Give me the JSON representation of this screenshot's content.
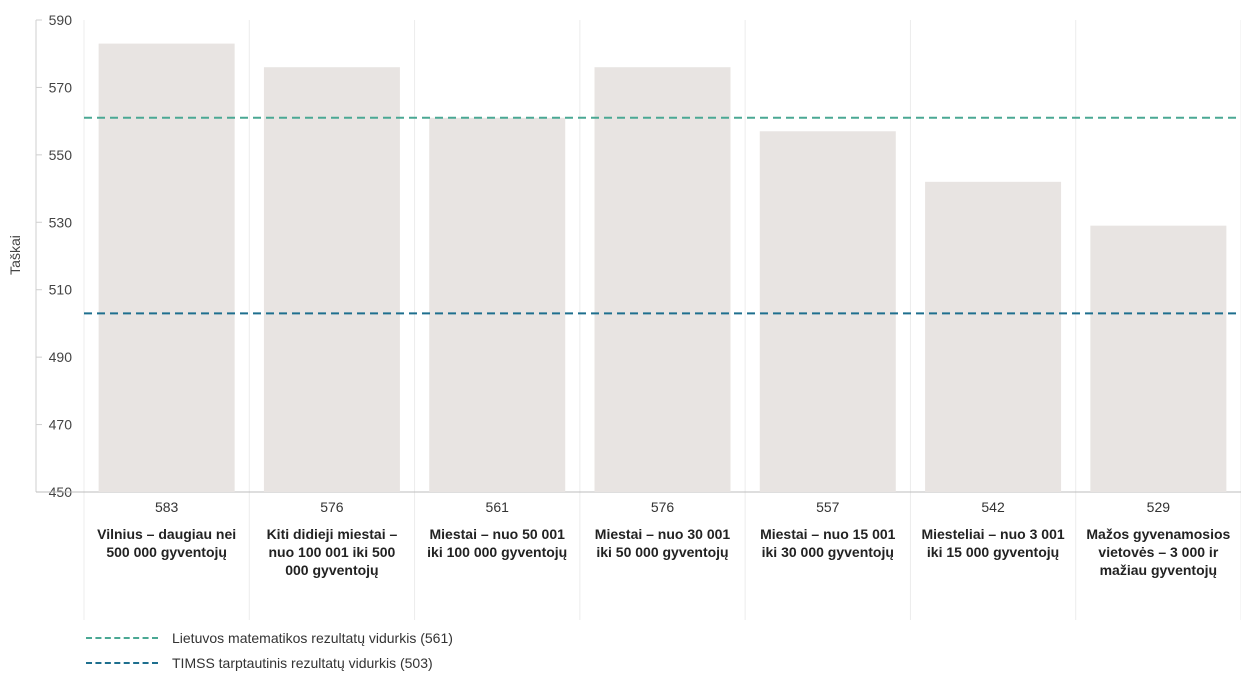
{
  "chart_data": {
    "type": "bar",
    "ylabel": "Taškai",
    "ylim": [
      450,
      590
    ],
    "yticks": [
      450,
      470,
      490,
      510,
      530,
      550,
      570,
      590
    ],
    "categories": [
      "Vilnius – daugiau nei 500 000 gyventojų",
      "Kiti didieji miestai – nuo 100 001 iki 500 000 gyventojų",
      "Miestai – nuo 50 001 iki 100 000 gyventojų",
      "Miestai – nuo 30 001 iki 50 000 gyventojų",
      "Miestai – nuo 15 001 iki 30 000 gyventojų",
      "Miesteliai – nuo 3 001 iki 15 000 gyventojų",
      "Mažos gyvenamosios vietovės – 3 000 ir mažiau gyventojų"
    ],
    "values": [
      583,
      576,
      561,
      576,
      557,
      542,
      529
    ],
    "bar_color": "#e8e4e2",
    "reference_lines": [
      {
        "label": "Lietuvos matematikos rezultatų vidurkis (561)",
        "value": 561,
        "color": "#4aa894"
      },
      {
        "label": "TIMSS tarptautinis rezultatų vidurkis (503)",
        "value": 503,
        "color": "#1e6f8e"
      }
    ],
    "grid": true,
    "legend": "bottom-left"
  }
}
